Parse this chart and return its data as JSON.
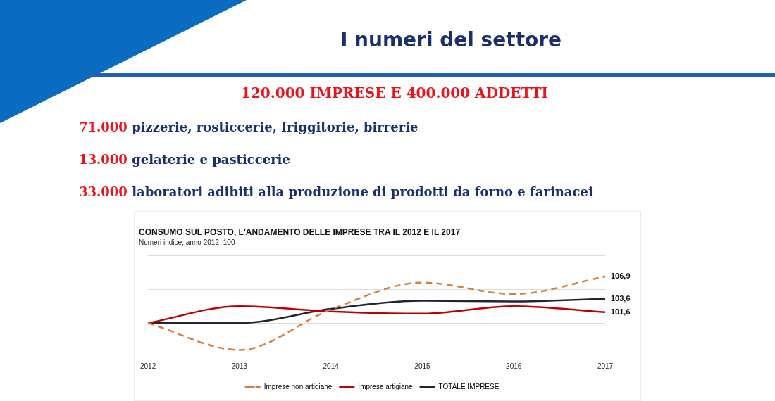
{
  "chart_data": {
    "type": "line",
    "title": "CONSUMO SUL POSTO, L'ANDAMENTO DELLE IMPRESE TRA IL 2012 E IL 2017",
    "subtitle": "Numeri indice; anno 2012=100",
    "annotations": [
      "I numeri del settore",
      "120.000 IMPRESE E 400.000 ADDETTI",
      "71.000 pizzerie, rosticcerie, friggitorie, birrerie",
      "13.000 gelaterie e pasticcerie",
      "33.000 laboratori adibiti alla produzione di prodotti da forno e farinacei"
    ],
    "categories": [
      "2012",
      "2013",
      "2014",
      "2015",
      "2016",
      "2017"
    ],
    "series": [
      {
        "name": "Imprese non artigiane",
        "color": "#d2803f",
        "line_style": "dashed",
        "values": [
          100,
          96.0,
          102.0,
          106.0,
          104.3,
          106.9
        ],
        "value_labels": [
          null,
          null,
          null,
          null,
          null,
          "106,9"
        ]
      },
      {
        "name": "Imprese artigiane",
        "color": "#c00000",
        "values": [
          100,
          102.5,
          101.7,
          101.4,
          102.5,
          101.6
        ],
        "value_labels": [
          null,
          null,
          null,
          null,
          null,
          "101,6"
        ]
      },
      {
        "name": "TOTALE IMPRESE",
        "color": "#1f2633",
        "values": [
          100,
          100.0,
          102.1,
          103.3,
          103.2,
          103.6
        ],
        "value_labels": [
          null,
          null,
          null,
          null,
          null,
          "103,6"
        ]
      }
    ],
    "ylim": [
      95,
      110
    ],
    "yticks": [
      {
        "value": 95,
        "label": null
      },
      {
        "value": 100,
        "label": null
      },
      {
        "value": 105,
        "label": null
      },
      {
        "value": 110,
        "label": null
      }
    ],
    "tick_labels": "x",
    "grid": "y",
    "legend": "bottom",
    "marker": "none"
  }
}
